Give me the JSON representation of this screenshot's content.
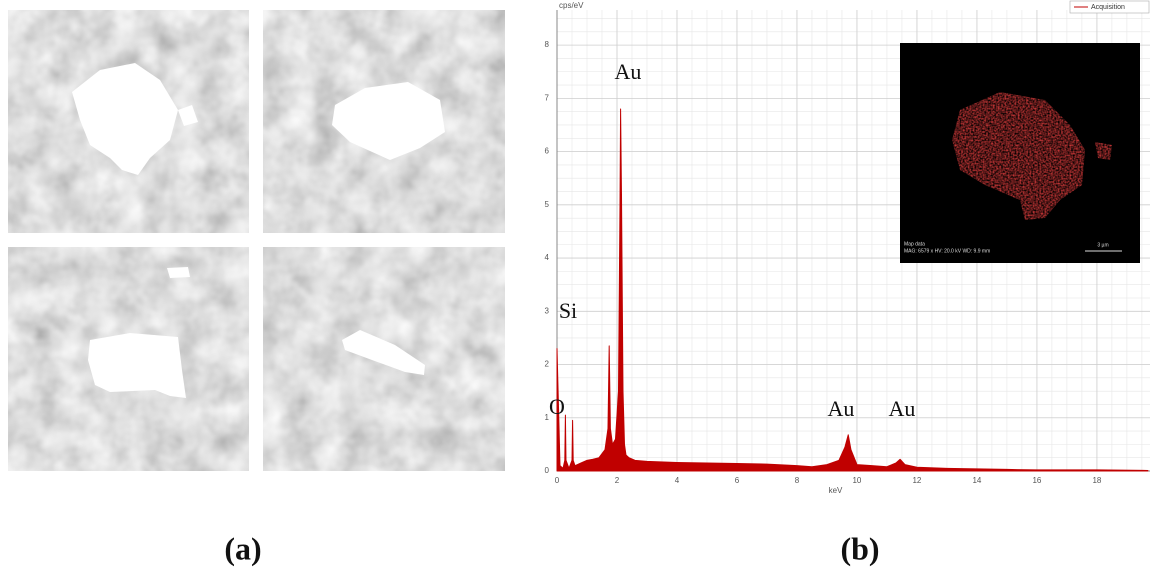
{
  "panels": {
    "a": "(a)",
    "b": "(b)"
  },
  "chart_data": {
    "type": "area",
    "x_label": "keV",
    "y_label": "cps/eV",
    "x": [
      0,
      0.1,
      0.2,
      0.26,
      0.28,
      0.3,
      0.4,
      0.5,
      0.52,
      0.54,
      0.6,
      0.8,
      1.0,
      1.2,
      1.4,
      1.6,
      1.7,
      1.74,
      1.78,
      1.85,
      1.95,
      2.05,
      2.1,
      2.12,
      2.15,
      2.2,
      2.25,
      2.3,
      2.4,
      2.6,
      3,
      4,
      5,
      6,
      7,
      8,
      8.5,
      9,
      9.4,
      9.6,
      9.71,
      9.8,
      10,
      10.5,
      11,
      11.3,
      11.44,
      11.6,
      12,
      13,
      14,
      15,
      16,
      18,
      19.7
    ],
    "series": [
      {
        "name": "Acquisition",
        "color": "#c00000",
        "values": [
          2.3,
          0.1,
          0.05,
          0.2,
          1.05,
          0.2,
          0.05,
          0.2,
          0.95,
          0.2,
          0.1,
          0.15,
          0.2,
          0.22,
          0.25,
          0.4,
          0.8,
          2.35,
          0.8,
          0.5,
          0.6,
          1.5,
          5.0,
          6.8,
          5.2,
          1.5,
          0.5,
          0.3,
          0.25,
          0.2,
          0.18,
          0.16,
          0.15,
          0.14,
          0.13,
          0.1,
          0.08,
          0.12,
          0.2,
          0.45,
          0.68,
          0.4,
          0.12,
          0.1,
          0.08,
          0.15,
          0.22,
          0.12,
          0.07,
          0.05,
          0.04,
          0.03,
          0.02,
          0.02,
          0.01
        ]
      }
    ],
    "xlim": [
      0,
      19.77
    ],
    "ylim": [
      0,
      8.66
    ],
    "xticks": [
      0,
      2,
      4,
      6,
      8,
      10,
      12,
      14,
      16,
      18
    ],
    "yticks": [
      0,
      1,
      2,
      3,
      4,
      5,
      6,
      7,
      8
    ],
    "grid": true,
    "legend": "top-right",
    "annotations": [
      "Au",
      "Si",
      "O",
      "Au",
      "Au"
    ],
    "inset": {
      "lines": [
        "Map data",
        "MAG: 6579 x  HV: 20.0 kV  WD: 9.9 mm"
      ],
      "scale": "3 µm"
    }
  }
}
